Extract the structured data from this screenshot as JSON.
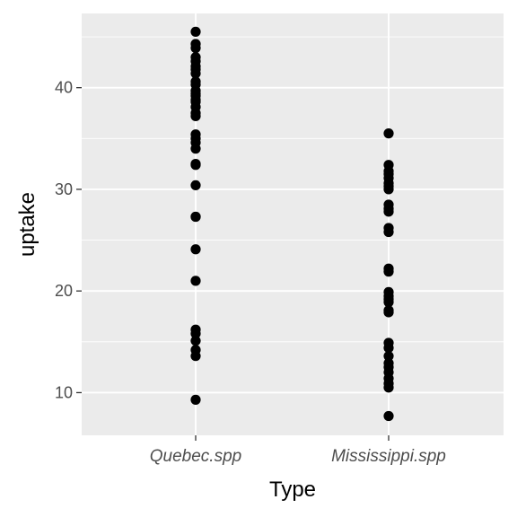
{
  "chart_data": {
    "type": "scatter",
    "xlabel": "Type",
    "ylabel": "uptake",
    "categories": [
      "Quebec.spp",
      "Mississippi.spp"
    ],
    "ylim": [
      5.8,
      47.3
    ],
    "yticks": [
      10,
      20,
      30,
      40
    ],
    "grid": true,
    "colors": {
      "panel": "#ebebeb",
      "grid": "#ffffff",
      "point": "#000000",
      "tick": "#333333"
    },
    "series": [
      {
        "category": "Quebec.spp",
        "values": [
          45.5,
          44.3,
          43.9,
          43.0,
          42.6,
          42.1,
          41.8,
          41.4,
          40.6,
          40.3,
          39.7,
          39.4,
          39.2,
          38.8,
          38.6,
          38.1,
          37.5,
          37.2,
          35.4,
          35.0,
          34.6,
          34.0,
          32.5,
          32.4,
          30.4,
          27.3,
          27.3,
          24.1,
          21.0,
          16.2,
          15.8,
          15.1,
          14.2,
          13.6,
          9.3
        ]
      },
      {
        "category": "Mississippi.spp",
        "values": [
          35.5,
          32.4,
          31.8,
          31.5,
          31.1,
          30.6,
          30.3,
          30.0,
          28.5,
          28.1,
          27.8,
          26.2,
          25.8,
          22.2,
          21.9,
          19.9,
          19.5,
          19.2,
          18.9,
          18.1,
          17.9,
          14.9,
          14.4,
          13.6,
          12.9,
          12.5,
          12.0,
          11.4,
          10.9,
          10.5,
          7.7
        ]
      }
    ]
  }
}
